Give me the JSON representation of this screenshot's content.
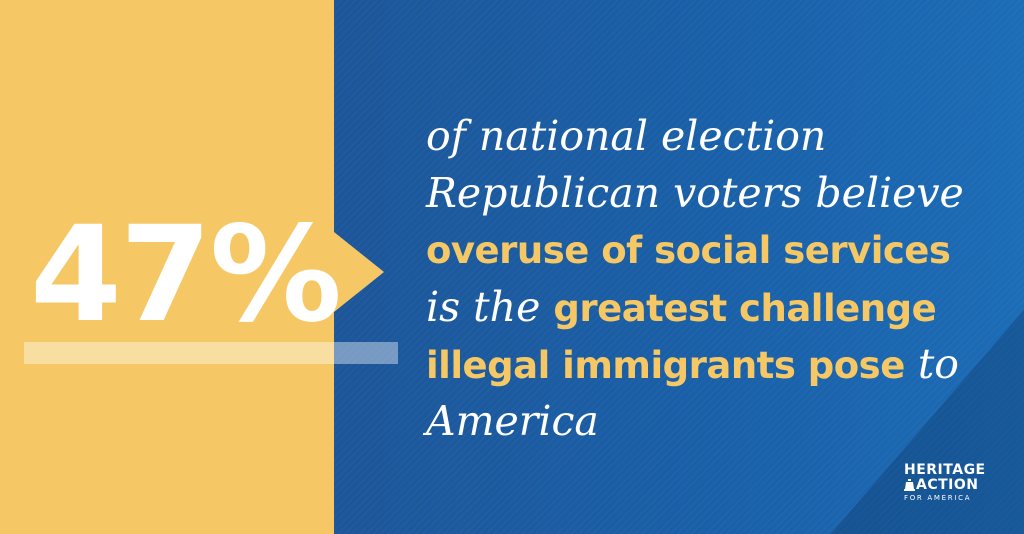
{
  "stat": {
    "value": "47%"
  },
  "statement": {
    "line1": [
      {
        "text": "of national election"
      }
    ],
    "line2": [
      {
        "text": "Republican voters believe"
      }
    ],
    "line3": [
      {
        "text": "overuse of social services"
      }
    ],
    "line4": [
      {
        "text": "is the "
      },
      {
        "text": "greatest challenge"
      }
    ],
    "line5": [
      {
        "text": "illegal immigrants pose"
      },
      {
        "text": " to"
      }
    ],
    "line6": [
      {
        "text": "America"
      }
    ]
  },
  "logo": {
    "line1": "HERITAGE",
    "line2": "ACTION",
    "line3": "FOR AMERICA",
    "icon": "liberty-bell-icon"
  },
  "colors": {
    "yellow": "#f6c865",
    "blue": "#1a5da3",
    "text": "#ffffff"
  }
}
